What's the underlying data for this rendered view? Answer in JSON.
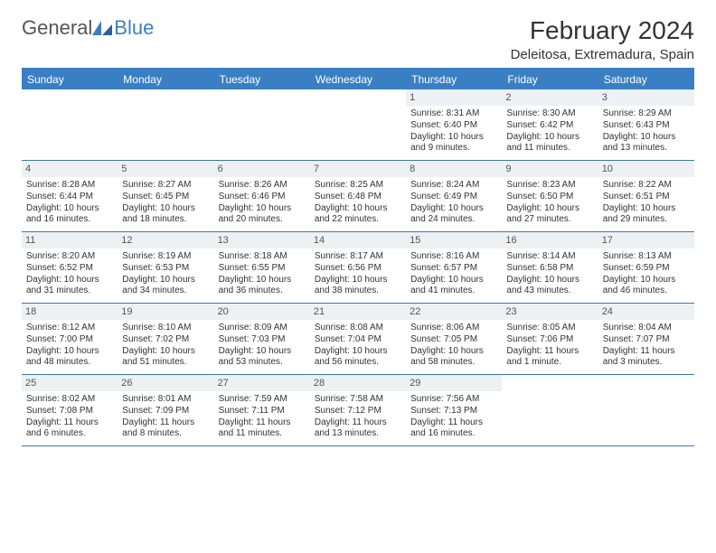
{
  "logo": {
    "general": "General",
    "blue": "Blue"
  },
  "title": "February 2024",
  "location": "Deleitosa, Extremadura, Spain",
  "colors": {
    "brand_blue": "#3a7fc4",
    "header_bg": "#3a7fc4",
    "daynum_bg": "#eef1f4",
    "rule": "#3e78b2",
    "text": "#333333",
    "logo_gray": "#555555"
  },
  "layout": {
    "columns": 7,
    "rows": 5,
    "first_weekday_index": 4
  },
  "weekdays": [
    "Sunday",
    "Monday",
    "Tuesday",
    "Wednesday",
    "Thursday",
    "Friday",
    "Saturday"
  ],
  "days": [
    {
      "n": 1,
      "sunrise": "8:31 AM",
      "sunset": "6:40 PM",
      "daylight": "10 hours and 9 minutes."
    },
    {
      "n": 2,
      "sunrise": "8:30 AM",
      "sunset": "6:42 PM",
      "daylight": "10 hours and 11 minutes."
    },
    {
      "n": 3,
      "sunrise": "8:29 AM",
      "sunset": "6:43 PM",
      "daylight": "10 hours and 13 minutes."
    },
    {
      "n": 4,
      "sunrise": "8:28 AM",
      "sunset": "6:44 PM",
      "daylight": "10 hours and 16 minutes."
    },
    {
      "n": 5,
      "sunrise": "8:27 AM",
      "sunset": "6:45 PM",
      "daylight": "10 hours and 18 minutes."
    },
    {
      "n": 6,
      "sunrise": "8:26 AM",
      "sunset": "6:46 PM",
      "daylight": "10 hours and 20 minutes."
    },
    {
      "n": 7,
      "sunrise": "8:25 AM",
      "sunset": "6:48 PM",
      "daylight": "10 hours and 22 minutes."
    },
    {
      "n": 8,
      "sunrise": "8:24 AM",
      "sunset": "6:49 PM",
      "daylight": "10 hours and 24 minutes."
    },
    {
      "n": 9,
      "sunrise": "8:23 AM",
      "sunset": "6:50 PM",
      "daylight": "10 hours and 27 minutes."
    },
    {
      "n": 10,
      "sunrise": "8:22 AM",
      "sunset": "6:51 PM",
      "daylight": "10 hours and 29 minutes."
    },
    {
      "n": 11,
      "sunrise": "8:20 AM",
      "sunset": "6:52 PM",
      "daylight": "10 hours and 31 minutes."
    },
    {
      "n": 12,
      "sunrise": "8:19 AM",
      "sunset": "6:53 PM",
      "daylight": "10 hours and 34 minutes."
    },
    {
      "n": 13,
      "sunrise": "8:18 AM",
      "sunset": "6:55 PM",
      "daylight": "10 hours and 36 minutes."
    },
    {
      "n": 14,
      "sunrise": "8:17 AM",
      "sunset": "6:56 PM",
      "daylight": "10 hours and 38 minutes."
    },
    {
      "n": 15,
      "sunrise": "8:16 AM",
      "sunset": "6:57 PM",
      "daylight": "10 hours and 41 minutes."
    },
    {
      "n": 16,
      "sunrise": "8:14 AM",
      "sunset": "6:58 PM",
      "daylight": "10 hours and 43 minutes."
    },
    {
      "n": 17,
      "sunrise": "8:13 AM",
      "sunset": "6:59 PM",
      "daylight": "10 hours and 46 minutes."
    },
    {
      "n": 18,
      "sunrise": "8:12 AM",
      "sunset": "7:00 PM",
      "daylight": "10 hours and 48 minutes."
    },
    {
      "n": 19,
      "sunrise": "8:10 AM",
      "sunset": "7:02 PM",
      "daylight": "10 hours and 51 minutes."
    },
    {
      "n": 20,
      "sunrise": "8:09 AM",
      "sunset": "7:03 PM",
      "daylight": "10 hours and 53 minutes."
    },
    {
      "n": 21,
      "sunrise": "8:08 AM",
      "sunset": "7:04 PM",
      "daylight": "10 hours and 56 minutes."
    },
    {
      "n": 22,
      "sunrise": "8:06 AM",
      "sunset": "7:05 PM",
      "daylight": "10 hours and 58 minutes."
    },
    {
      "n": 23,
      "sunrise": "8:05 AM",
      "sunset": "7:06 PM",
      "daylight": "11 hours and 1 minute."
    },
    {
      "n": 24,
      "sunrise": "8:04 AM",
      "sunset": "7:07 PM",
      "daylight": "11 hours and 3 minutes."
    },
    {
      "n": 25,
      "sunrise": "8:02 AM",
      "sunset": "7:08 PM",
      "daylight": "11 hours and 6 minutes."
    },
    {
      "n": 26,
      "sunrise": "8:01 AM",
      "sunset": "7:09 PM",
      "daylight": "11 hours and 8 minutes."
    },
    {
      "n": 27,
      "sunrise": "7:59 AM",
      "sunset": "7:11 PM",
      "daylight": "11 hours and 11 minutes."
    },
    {
      "n": 28,
      "sunrise": "7:58 AM",
      "sunset": "7:12 PM",
      "daylight": "11 hours and 13 minutes."
    },
    {
      "n": 29,
      "sunrise": "7:56 AM",
      "sunset": "7:13 PM",
      "daylight": "11 hours and 16 minutes."
    }
  ],
  "labels": {
    "sunrise": "Sunrise:",
    "sunset": "Sunset:",
    "daylight": "Daylight:"
  }
}
